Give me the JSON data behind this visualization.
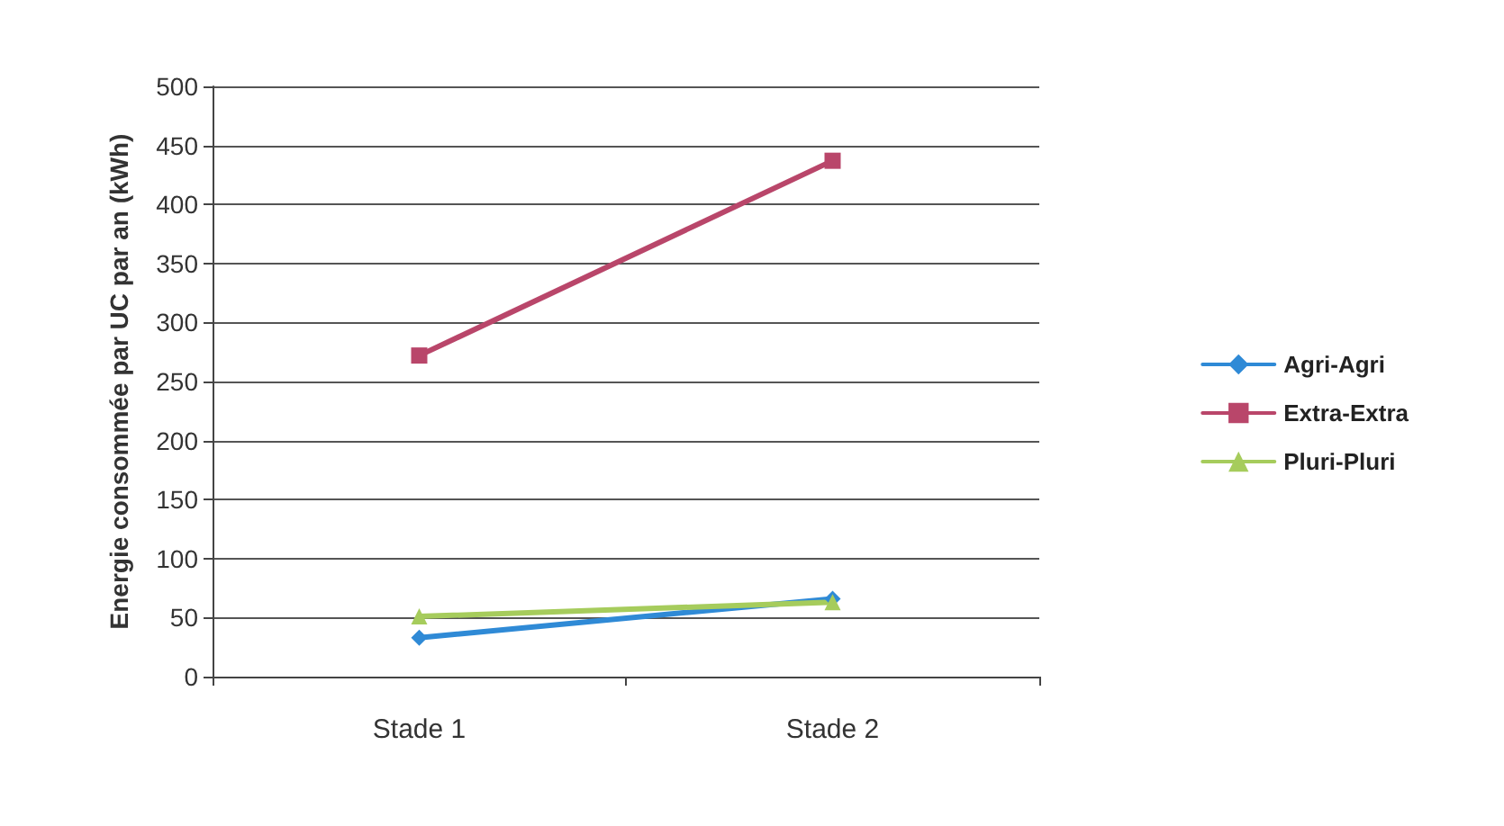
{
  "chart_data": {
    "type": "line",
    "ylabel": "Energie consommée par UC par an (kWh)",
    "categories": [
      "Stade 1",
      "Stade 2"
    ],
    "series": [
      {
        "name": "Agri-Agri",
        "color": "#2f8ad6",
        "values": [
          33,
          66
        ],
        "marker": "diamond"
      },
      {
        "name": "Extra-Extra",
        "color": "#b9466a",
        "values": [
          272,
          437
        ],
        "marker": "square"
      },
      {
        "name": "Pluri-Pluri",
        "color": "#a6cc5c",
        "values": [
          51,
          63
        ],
        "marker": "triangle"
      }
    ],
    "ylim": [
      0,
      500
    ],
    "yticks": [
      0,
      50,
      100,
      150,
      200,
      250,
      300,
      350,
      400,
      450,
      500
    ],
    "grid": "y",
    "legend": "right",
    "line_style": "solid"
  }
}
